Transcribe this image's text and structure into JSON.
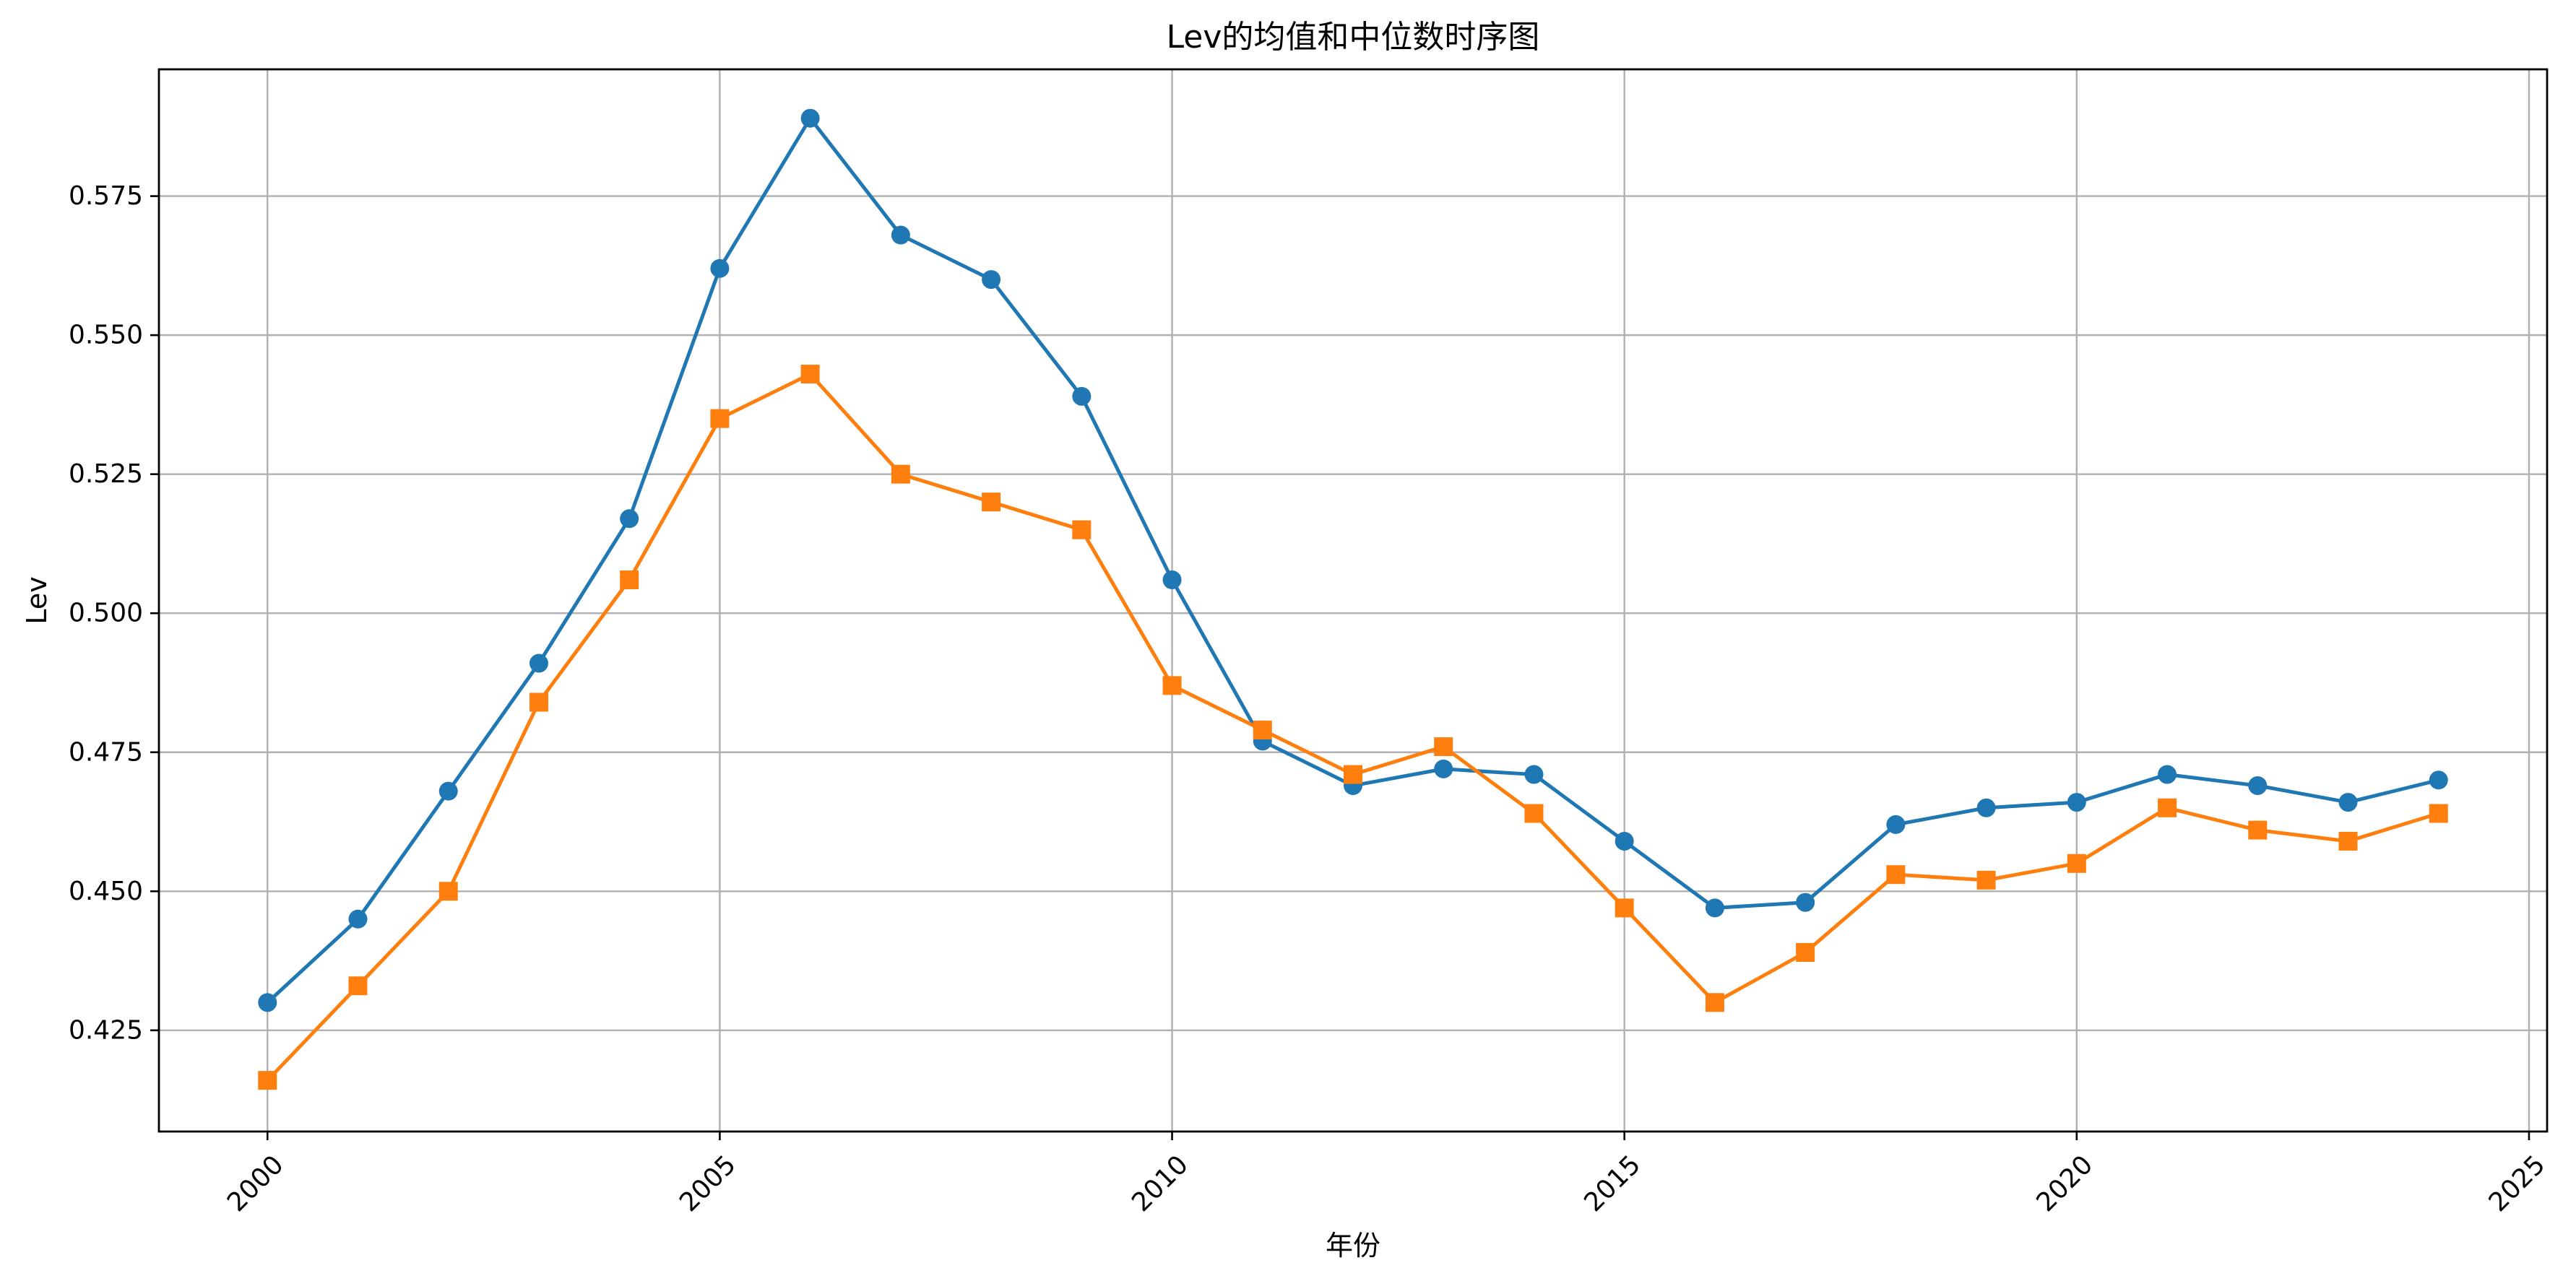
{
  "chart_data": {
    "type": "line",
    "title": "Lev的均值和中位数时序图",
    "xlabel": "年份",
    "ylabel": "Lev",
    "xlim": [
      1998.8,
      2025.2
    ],
    "ylim": [
      0.4068,
      0.5978
    ],
    "x_ticks": [
      2000,
      2005,
      2010,
      2015,
      2020,
      2025
    ],
    "y_ticks": [
      0.425,
      0.45,
      0.475,
      0.5,
      0.525,
      0.55,
      0.575
    ],
    "x_tick_labels": [
      "2000",
      "2005",
      "2010",
      "2015",
      "2020",
      "2025"
    ],
    "y_tick_labels": [
      "0.425",
      "0.450",
      "0.475",
      "0.500",
      "0.525",
      "0.550",
      "0.575"
    ],
    "x_tick_rotation_deg": -45,
    "grid": true,
    "x": [
      2000,
      2001,
      2002,
      2003,
      2004,
      2005,
      2006,
      2007,
      2008,
      2009,
      2010,
      2011,
      2012,
      2013,
      2014,
      2015,
      2016,
      2017,
      2018,
      2019,
      2020,
      2021,
      2022,
      2023,
      2024
    ],
    "series": [
      {
        "color": "#1f77b4",
        "marker": "circle",
        "values": [
          0.43,
          0.445,
          0.468,
          0.491,
          0.517,
          0.562,
          0.589,
          0.568,
          0.56,
          0.539,
          0.506,
          0.477,
          0.469,
          0.472,
          0.471,
          0.459,
          0.447,
          0.448,
          0.462,
          0.465,
          0.466,
          0.471,
          0.469,
          0.466,
          0.47
        ]
      },
      {
        "color": "#ff7f0e",
        "marker": "square",
        "values": [
          0.416,
          0.433,
          0.45,
          0.484,
          0.506,
          0.535,
          0.543,
          0.525,
          0.52,
          0.515,
          0.487,
          0.479,
          0.471,
          0.476,
          0.464,
          0.447,
          0.43,
          0.439,
          0.453,
          0.452,
          0.455,
          0.465,
          0.461,
          0.459,
          0.464
        ]
      }
    ]
  }
}
